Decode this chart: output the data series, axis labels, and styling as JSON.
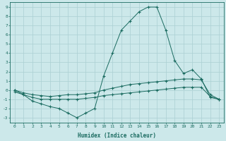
{
  "xlabel": "Humidex (Indice chaleur)",
  "bg_color": "#cce8ea",
  "line_color": "#1a6b60",
  "grid_color": "#aacfd2",
  "xlim": [
    -0.5,
    23.5
  ],
  "ylim": [
    -3.5,
    9.5
  ],
  "xticks": [
    0,
    1,
    2,
    3,
    4,
    5,
    6,
    7,
    8,
    9,
    10,
    11,
    12,
    13,
    14,
    15,
    16,
    17,
    18,
    19,
    20,
    21,
    22,
    23
  ],
  "yticks": [
    -3,
    -2,
    -1,
    0,
    1,
    2,
    3,
    4,
    5,
    6,
    7,
    8,
    9
  ],
  "line1_x": [
    0,
    1,
    2,
    3,
    4,
    5,
    6,
    7,
    8,
    9,
    10,
    11,
    12,
    13,
    14,
    15,
    16,
    17,
    18,
    19,
    20,
    21,
    22,
    23
  ],
  "line1_y": [
    0,
    -0.5,
    -1.2,
    -1.5,
    -1.8,
    -2.0,
    -2.5,
    -3.0,
    -2.5,
    -2.0,
    1.5,
    4.0,
    6.5,
    7.5,
    8.5,
    9.0,
    9.0,
    6.5,
    3.2,
    1.8,
    2.2,
    1.2,
    -0.8,
    -1.0
  ],
  "line2_x": [
    0,
    1,
    2,
    3,
    4,
    5,
    6,
    7,
    8,
    9,
    10,
    11,
    12,
    13,
    14,
    15,
    16,
    17,
    18,
    19,
    20,
    21,
    22,
    23
  ],
  "line2_y": [
    0,
    -0.3,
    -0.5,
    -0.6,
    -0.7,
    -0.6,
    -0.5,
    -0.5,
    -0.4,
    -0.3,
    0.0,
    0.2,
    0.4,
    0.6,
    0.7,
    0.8,
    0.9,
    1.0,
    1.1,
    1.2,
    1.2,
    1.1,
    -0.5,
    -1.0
  ],
  "line3_x": [
    0,
    1,
    2,
    3,
    4,
    5,
    6,
    7,
    8,
    9,
    10,
    11,
    12,
    13,
    14,
    15,
    16,
    17,
    18,
    19,
    20,
    21,
    22,
    23
  ],
  "line3_y": [
    -0.2,
    -0.5,
    -0.8,
    -1.0,
    -1.0,
    -1.0,
    -1.0,
    -1.0,
    -0.9,
    -0.8,
    -0.6,
    -0.5,
    -0.4,
    -0.3,
    -0.2,
    -0.1,
    0.0,
    0.1,
    0.2,
    0.3,
    0.3,
    0.3,
    -0.7,
    -1.0
  ]
}
